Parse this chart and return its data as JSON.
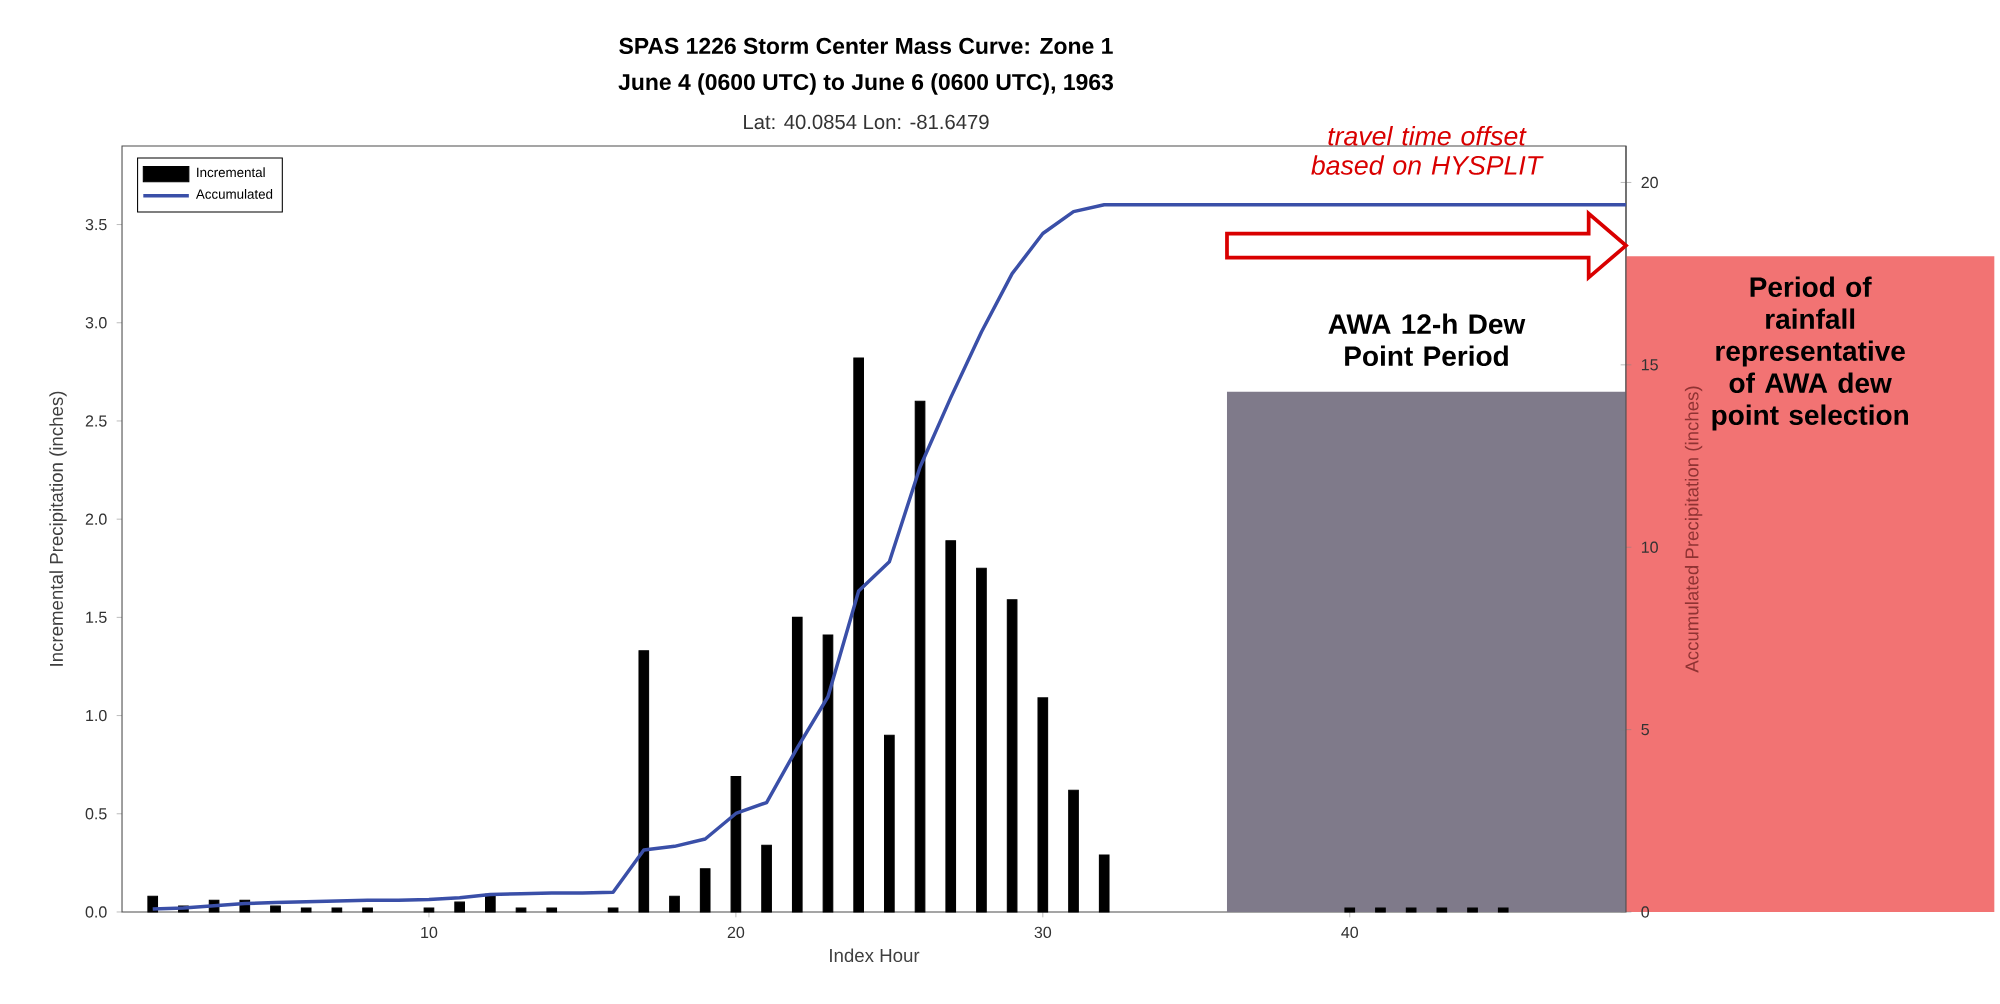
{
  "chart_data": {
    "type": "bar",
    "title": "SPAS 1226 Storm Center Mass Curve: Zone 1",
    "subtitle": "June 4 (0600 UTC)  to June 6 (0600 UTC), 1963",
    "annotations": [
      "Lat: 40.0854  Lon: -81.6479",
      "travel time offset based on HYSPLIT"
    ],
    "xlabel": "Index Hour",
    "ylabel": "Incremental Precipitation (inches)",
    "y2label": "Accumulated Precipitation (inches)",
    "xlim": [
      0,
      49
    ],
    "xticks": [
      10,
      20,
      30,
      40
    ],
    "ylim": [
      0,
      3.9
    ],
    "yticks": [
      {
        "value": 0,
        "label": "0.0"
      },
      {
        "value": 0.5,
        "label": "0.5"
      },
      {
        "value": 1,
        "label": "1.0"
      },
      {
        "value": 1.5,
        "label": "1.5"
      },
      {
        "value": 2,
        "label": "2.0"
      },
      {
        "value": 2.5,
        "label": "2.5"
      },
      {
        "value": 3,
        "label": "3.0"
      },
      {
        "value": 3.5,
        "label": "3.5"
      }
    ],
    "y2lim": [
      0,
      21
    ],
    "y2ticks": [
      0,
      5,
      10,
      15,
      20
    ],
    "legend": "top left",
    "series": [
      {
        "name": "Incremental",
        "color": "#000000",
        "x": [
          1,
          2,
          3,
          4,
          5,
          6,
          7,
          8,
          10,
          11,
          12,
          13,
          14,
          16,
          17,
          18,
          19,
          20,
          21,
          22,
          23,
          24,
          25,
          26,
          27,
          28,
          29,
          30,
          31,
          32,
          40,
          41,
          42,
          43,
          44,
          45
        ],
        "values": [
          0.08,
          0.03,
          0.06,
          0.06,
          0.03,
          0.02,
          0.02,
          0.02,
          0.02,
          0.05,
          0.09,
          0.02,
          0.02,
          0.02,
          1.33,
          0.08,
          0.22,
          0.69,
          0.34,
          1.5,
          1.41,
          2.82,
          0.9,
          2.6,
          1.89,
          1.75,
          1.59,
          1.09,
          0.62,
          0.29,
          0.02,
          0.02,
          0.02,
          0.02,
          0.02,
          0.02
        ]
      },
      {
        "name": "Accumulated",
        "type": "line",
        "axis": "y2",
        "color": "#3a4fa8",
        "x": [
          1,
          2,
          3,
          4,
          5,
          6,
          7,
          8,
          9,
          10,
          11,
          12,
          13,
          14,
          15,
          16,
          17,
          18,
          19,
          20,
          21,
          22,
          23,
          24,
          25,
          26,
          27,
          28,
          29,
          30,
          31,
          32,
          49
        ],
        "values": [
          0.08,
          0.11,
          0.17,
          0.23,
          0.26,
          0.28,
          0.3,
          0.32,
          0.32,
          0.34,
          0.39,
          0.48,
          0.5,
          0.52,
          0.52,
          0.54,
          1.7,
          1.8,
          2.0,
          2.7,
          3.0,
          4.5,
          5.9,
          8.8,
          9.6,
          12.2,
          14.1,
          15.9,
          17.5,
          18.6,
          19.2,
          19.39,
          19.39
        ]
      }
    ],
    "bands": [
      {
        "axis": "x",
        "from": 36,
        "to": 49,
        "label": "AWA 12-h Dew Point Period",
        "color": "#7f7a8a"
      },
      {
        "axis": "x",
        "from": 49,
        "to": 61,
        "label": "Period of rainfall representative of AWA dew point selection",
        "color": "#f27373"
      }
    ]
  }
}
